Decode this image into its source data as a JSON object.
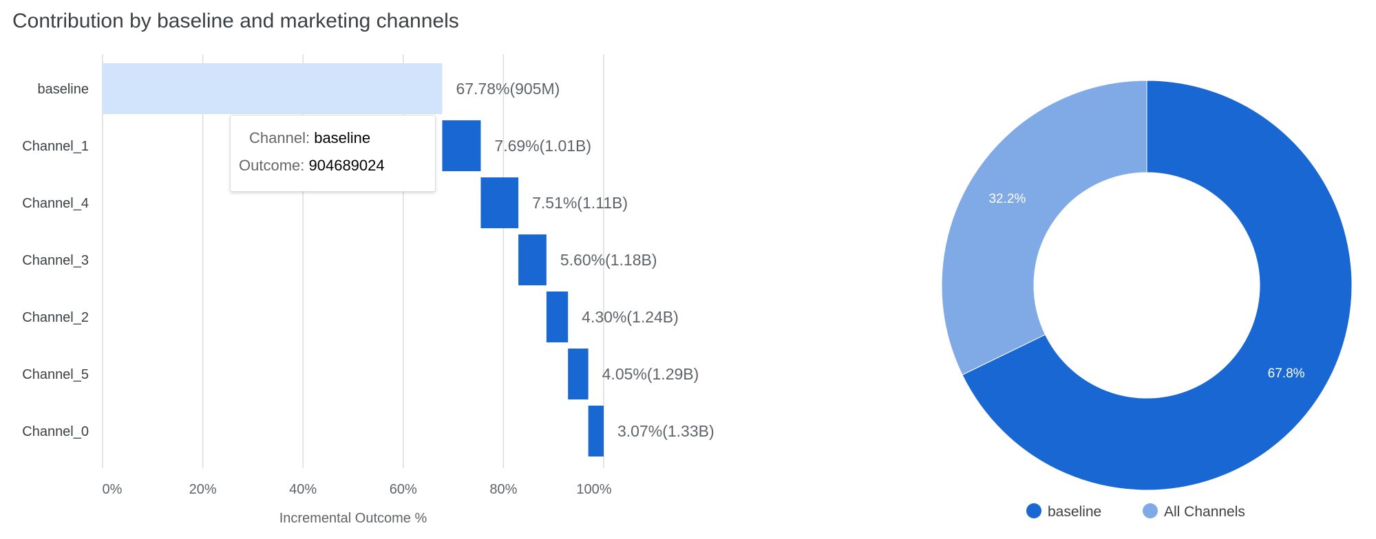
{
  "chart_data": [
    {
      "type": "bar",
      "subtype": "waterfall",
      "title": "Contribution by baseline and marketing channels",
      "xlabel": "Incremental Outcome %",
      "ylabel": "",
      "categories": [
        "baseline",
        "Channel_1",
        "Channel_4",
        "Channel_3",
        "Channel_2",
        "Channel_5",
        "Channel_0"
      ],
      "values": [
        67.78,
        7.69,
        7.51,
        5.6,
        4.3,
        4.05,
        3.07
      ],
      "data_labels": [
        "67.78%(905M)",
        "7.69%(1.01B)",
        "7.51%(1.11B)",
        "5.60%(1.18B)",
        "4.30%(1.24B)",
        "4.05%(1.29B)",
        "3.07%(1.33B)"
      ],
      "xlim": [
        0,
        100
      ],
      "xticks": [
        "0%",
        "20%",
        "40%",
        "60%",
        "80%",
        "100%"
      ],
      "grid": true,
      "colors": {
        "baseline": "#d2e3fc",
        "channel": "#1967d2"
      },
      "tooltip": {
        "channel_label": "Channel:",
        "channel_value": "baseline",
        "outcome_label": "Outcome:",
        "outcome_value": "904689024"
      }
    },
    {
      "type": "pie",
      "donut": true,
      "categories": [
        "baseline",
        "All Channels"
      ],
      "values": [
        67.8,
        32.2
      ],
      "data_labels": [
        "67.8%",
        "32.2%"
      ],
      "colors": [
        "#1967d2",
        "#80aae6"
      ],
      "legend": "bottom"
    }
  ]
}
